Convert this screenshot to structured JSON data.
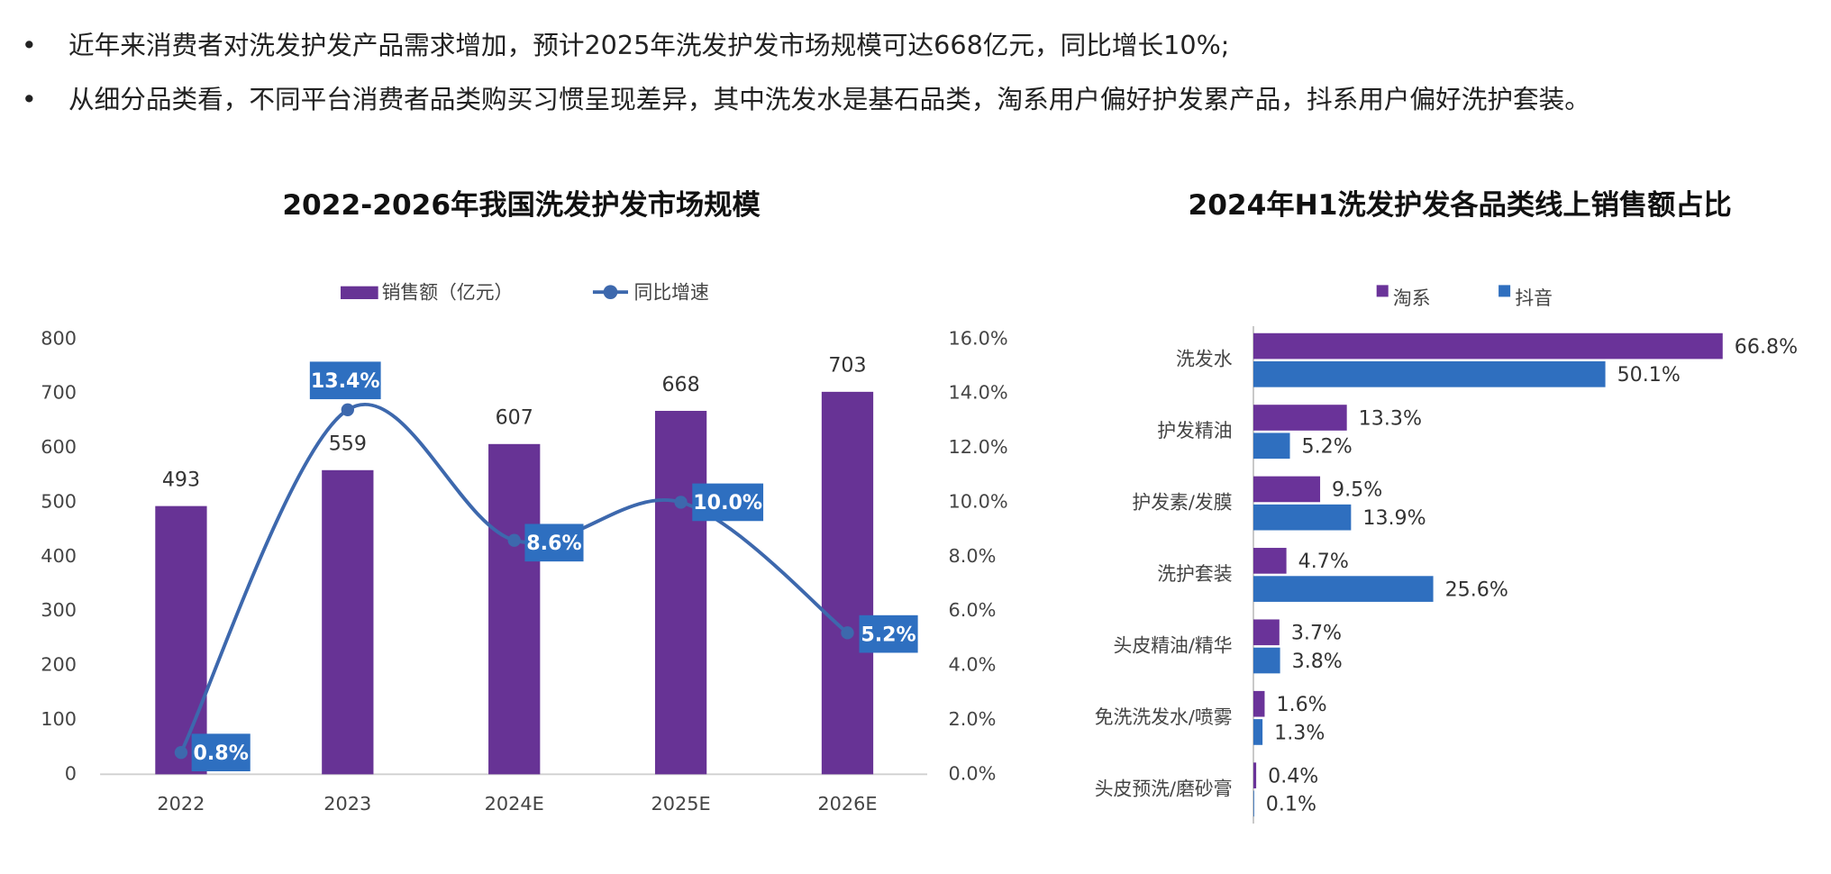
{
  "bullets": [
    "近年来消费者对洗发护发产品需求增加，预计2025年洗发护发市场规模可达668亿元，同比增长10%;",
    "从细分品类看，不同平台消费者品类购买习惯呈现差异，其中洗发水是基石品类，淘系用户偏好护发累产品，抖系用户偏好洗护套装。"
  ],
  "bullet_mark": "•",
  "chart_data": [
    {
      "type": "bar",
      "title": "2022-2026年我国洗发护发市场规模",
      "categories": [
        "2022",
        "2023",
        "2024E",
        "2025E",
        "2026E"
      ],
      "series": [
        {
          "name": "销售额（亿元）",
          "color": "#673395",
          "values": [
            493,
            559,
            607,
            668,
            703
          ]
        },
        {
          "name": "同比增速",
          "type": "line",
          "axis": "y2",
          "color": "#3d68ad",
          "values": [
            0.8,
            13.4,
            8.6,
            10.0,
            5.2
          ],
          "value_labels": [
            "0.8%",
            "13.4%",
            "8.6%",
            "10.0%",
            "5.2%"
          ],
          "label_color": "#2e6fc0"
        }
      ],
      "ylim": [
        0,
        800
      ],
      "yticks": [
        0,
        100,
        200,
        300,
        400,
        500,
        600,
        700,
        800
      ],
      "y2lim": [
        0,
        16
      ],
      "y2ticks": [
        {
          "value": 0,
          "label": "0.0%"
        },
        {
          "value": 2,
          "label": "2.0%"
        },
        {
          "value": 4,
          "label": "4.0%"
        },
        {
          "value": 6,
          "label": "6.0%"
        },
        {
          "value": 8,
          "label": "8.0%"
        },
        {
          "value": 10,
          "label": "10.0%"
        },
        {
          "value": 12,
          "label": "12.0%"
        },
        {
          "value": 14,
          "label": "14.0%"
        },
        {
          "value": 16,
          "label": "16.0%"
        }
      ],
      "legend": "top"
    },
    {
      "type": "barh",
      "title": "2024年H1洗发护发各品类线上销售额占比",
      "categories": [
        "洗发水",
        "护发精油",
        "护发素/发膜",
        "洗护套装",
        "头皮精油/精华",
        "免洗洗发水/喷雾",
        "头皮预洗/磨砂膏"
      ],
      "series": [
        {
          "name": "淘系",
          "color": "#6a3399",
          "values": [
            66.8,
            13.3,
            9.5,
            4.7,
            3.7,
            1.6,
            0.4
          ],
          "value_labels": [
            "66.8%",
            "13.3%",
            "9.5%",
            "4.7%",
            "3.7%",
            "1.6%",
            "0.4%"
          ]
        },
        {
          "name": "抖音",
          "color": "#2f6fbf",
          "values": [
            50.1,
            5.2,
            13.9,
            25.6,
            3.8,
            1.3,
            0.1
          ],
          "value_labels": [
            "50.1%",
            "5.2%",
            "13.9%",
            "25.6%",
            "3.8%",
            "1.3%",
            "0.1%"
          ]
        }
      ],
      "legend": "top"
    }
  ]
}
